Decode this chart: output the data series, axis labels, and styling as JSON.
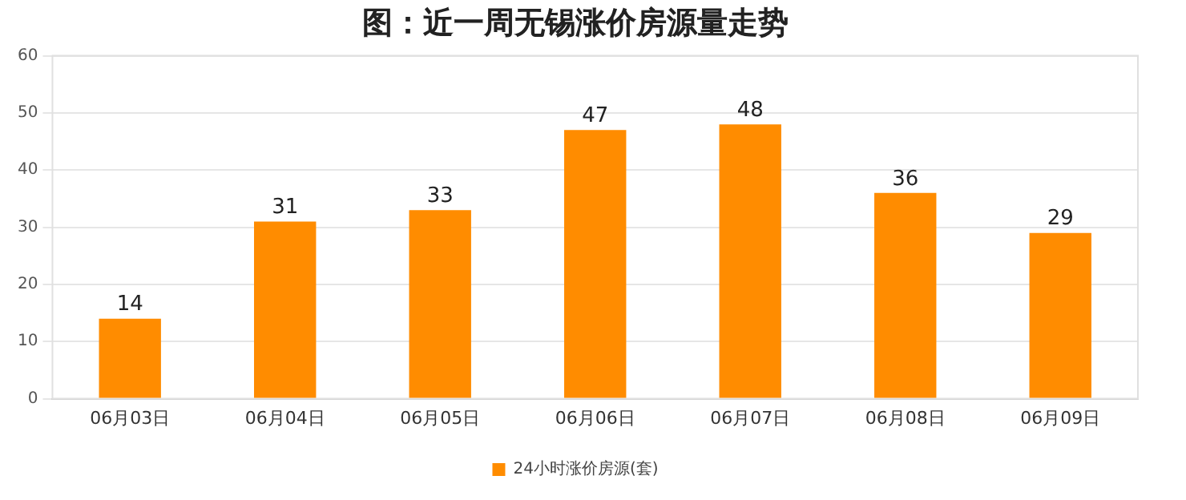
{
  "chart_data": {
    "type": "bar",
    "title": "图：近一周无锡涨价房源量走势",
    "categories": [
      "06月03日",
      "06月04日",
      "06月05日",
      "06月06日",
      "06月07日",
      "06月08日",
      "06月09日"
    ],
    "series": [
      {
        "name": "24小时涨价房源(套)",
        "color": "#ff8c00",
        "values": [
          14,
          31,
          33,
          47,
          48,
          36,
          29
        ]
      }
    ],
    "ylim": [
      0,
      60
    ],
    "yticks": [
      0,
      10,
      20,
      30,
      40,
      50,
      60
    ],
    "grid": "y",
    "legend": "bottom",
    "data_labels": true
  }
}
